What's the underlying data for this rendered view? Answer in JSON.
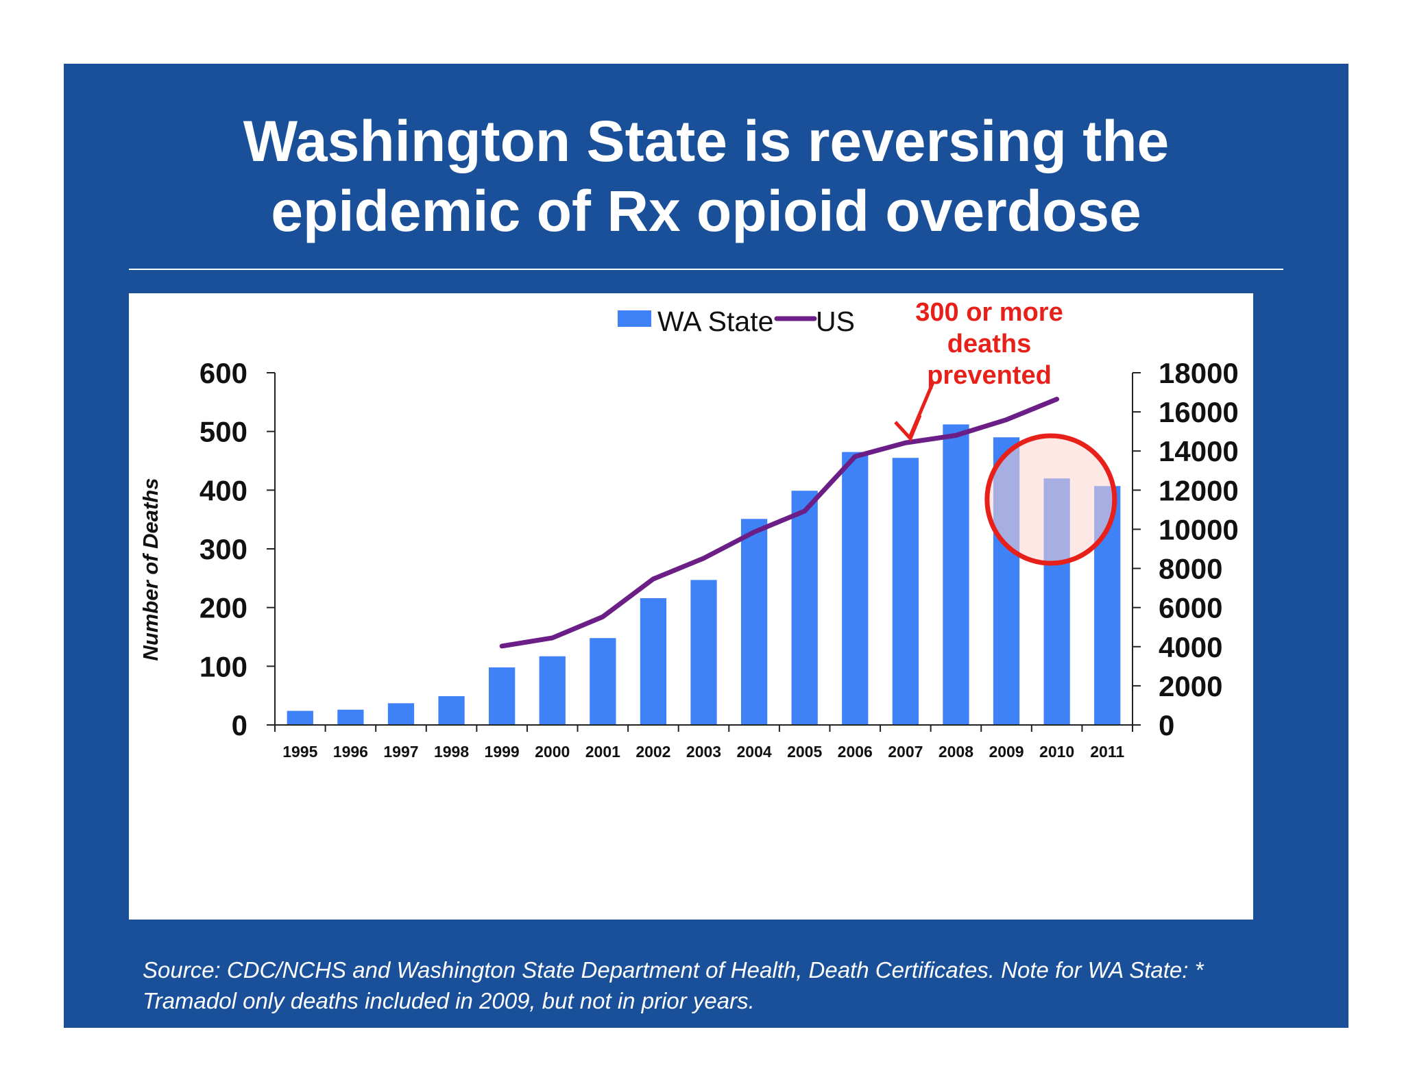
{
  "title": {
    "line1": "Washington State is reversing the",
    "line2": "epidemic of Rx opioid overdose"
  },
  "source": "Source:  CDC/NCHS and Washington State Department of Health, Death Certificates. Note for WA State: * Tramadol only deaths included in 2009, but not in prior years.",
  "annotation": {
    "line1": "300 or more",
    "line2": "deaths",
    "line3": "prevented"
  },
  "colors": {
    "background": "#1a5099",
    "bars": "#3f81f6",
    "line": "#6b1e86",
    "annotation": "#e8201a",
    "highlight_fill": "#fdd5d2"
  },
  "chart_data": {
    "type": "bar",
    "categories": [
      "1995",
      "1996",
      "1997",
      "1998",
      "1999",
      "2000",
      "2001",
      "2002",
      "2003",
      "2004",
      "2005",
      "2006",
      "2007",
      "2008",
      "2009",
      "2010",
      "2011"
    ],
    "series": [
      {
        "name": "WA State",
        "type": "bar",
        "axis": "left",
        "values": [
          24,
          26,
          37,
          49,
          98,
          117,
          148,
          216,
          247,
          351,
          399,
          465,
          455,
          512,
          490,
          420,
          407
        ]
      },
      {
        "name": "US",
        "type": "line",
        "axis": "right",
        "values": [
          null,
          null,
          null,
          null,
          4030,
          4450,
          5530,
          7460,
          8520,
          9860,
          10930,
          13720,
          14420,
          14800,
          15600,
          16650,
          null
        ]
      }
    ],
    "ylabel": "Number of Deaths",
    "y2label": "Number of Deaths",
    "ylim": [
      0,
      600
    ],
    "y2lim": [
      0,
      18000
    ],
    "yticks": [
      "0",
      "100",
      "200",
      "300",
      "400",
      "500",
      "600"
    ],
    "y2ticks": [
      "0",
      "2000",
      "4000",
      "6000",
      "8000",
      "10000",
      "12000",
      "14000",
      "16000",
      "18000"
    ],
    "legend_position": "top",
    "grid": false
  }
}
